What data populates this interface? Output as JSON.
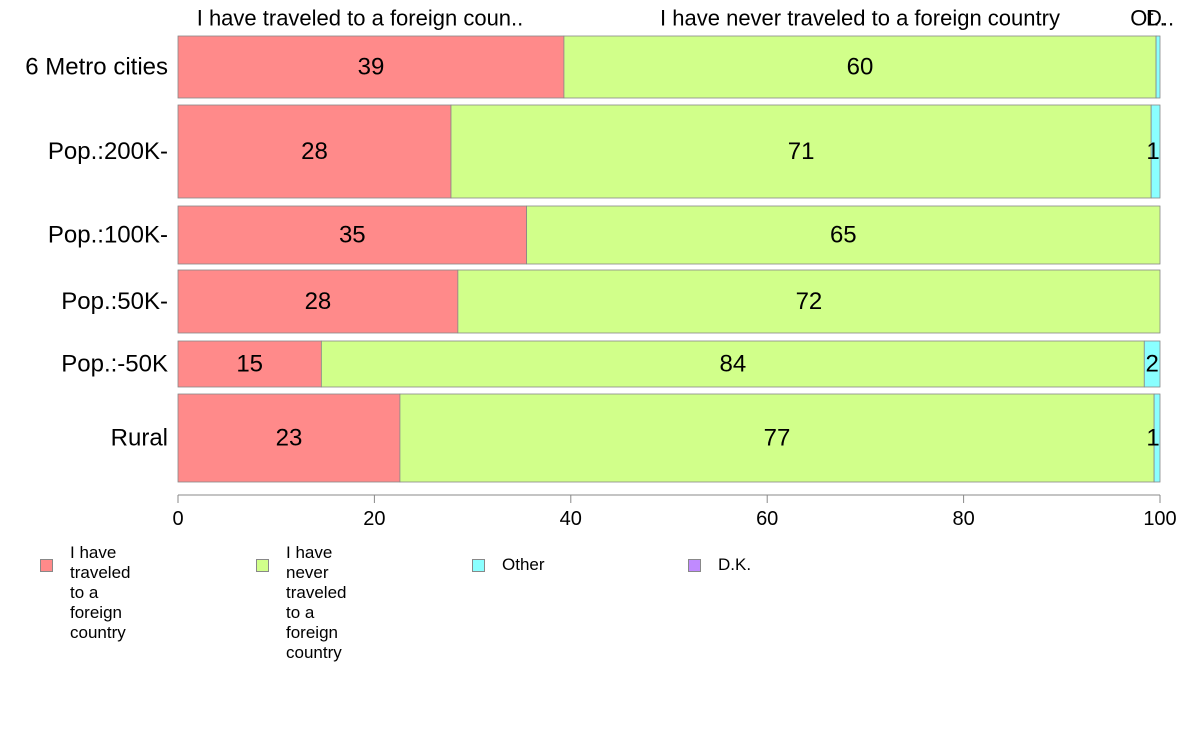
{
  "chart_data": {
    "type": "bar",
    "orientation": "horizontal",
    "stacked": true,
    "categories": [
      "6 Metro cities",
      "Pop.:200K-",
      "Pop.:100K-",
      "Pop.:50K-",
      "Pop.:-50K",
      "Rural"
    ],
    "column_headers": [
      "I have traveled to a foreign coun..",
      "I have never traveled to a foreign country",
      "Ot..",
      "D.."
    ],
    "series": [
      {
        "name": "I have traveled\nto a foreign country",
        "color": "#ff8a8a",
        "values": [
          39.3,
          27.8,
          35.5,
          28.5,
          14.6,
          22.6
        ],
        "labels": [
          "39",
          "28",
          "35",
          "28",
          "15",
          "23"
        ]
      },
      {
        "name": "I have never traveled\nto a foreign country",
        "color": "#d1ff8a",
        "values": [
          60.3,
          71.3,
          64.5,
          71.5,
          83.8,
          76.8
        ],
        "labels": [
          "60",
          "71",
          "65",
          "72",
          "84",
          "77"
        ]
      },
      {
        "name": "Other",
        "color": "#8affff",
        "values": [
          0.4,
          0.9,
          0.0,
          0.0,
          1.6,
          0.6
        ],
        "labels": [
          "",
          "1",
          "",
          "",
          "2",
          "1"
        ]
      },
      {
        "name": "D.K.",
        "color": "#c08aff",
        "values": [
          0,
          0,
          0,
          0,
          0,
          0
        ],
        "labels": [
          "",
          "",
          "",
          "",
          "",
          ""
        ]
      }
    ],
    "xlim": [
      0,
      100
    ],
    "x_ticks": [
      "0",
      "20",
      "40",
      "60",
      "80",
      "100"
    ],
    "legend_position": "bottom-left",
    "grid": false
  }
}
